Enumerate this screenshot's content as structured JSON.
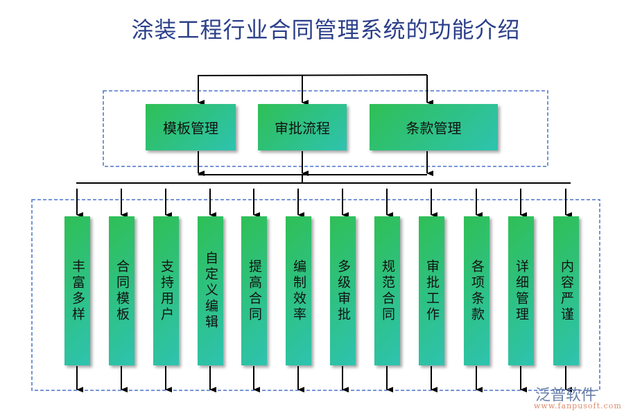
{
  "title": "涂装工程行业合同管理系统的功能介绍",
  "modules": [
    "模板管理",
    "审批流程",
    "条款管理"
  ],
  "features": [
    "丰富多样",
    "合同模板",
    "支持用户",
    "自定义编辑",
    "提高合同",
    "编制效率",
    "多级审批",
    "规范合同",
    "审批工作",
    "各项条款",
    "详细管理",
    "内容严谨"
  ],
  "watermark": {
    "brand": "泛普软件",
    "url": "www.fanpusoft.com"
  },
  "colors": {
    "title": "#2b3f8a",
    "box_start": "#2fbf55",
    "box_end": "#2ec3b0",
    "dashed": "#4a72c8"
  }
}
